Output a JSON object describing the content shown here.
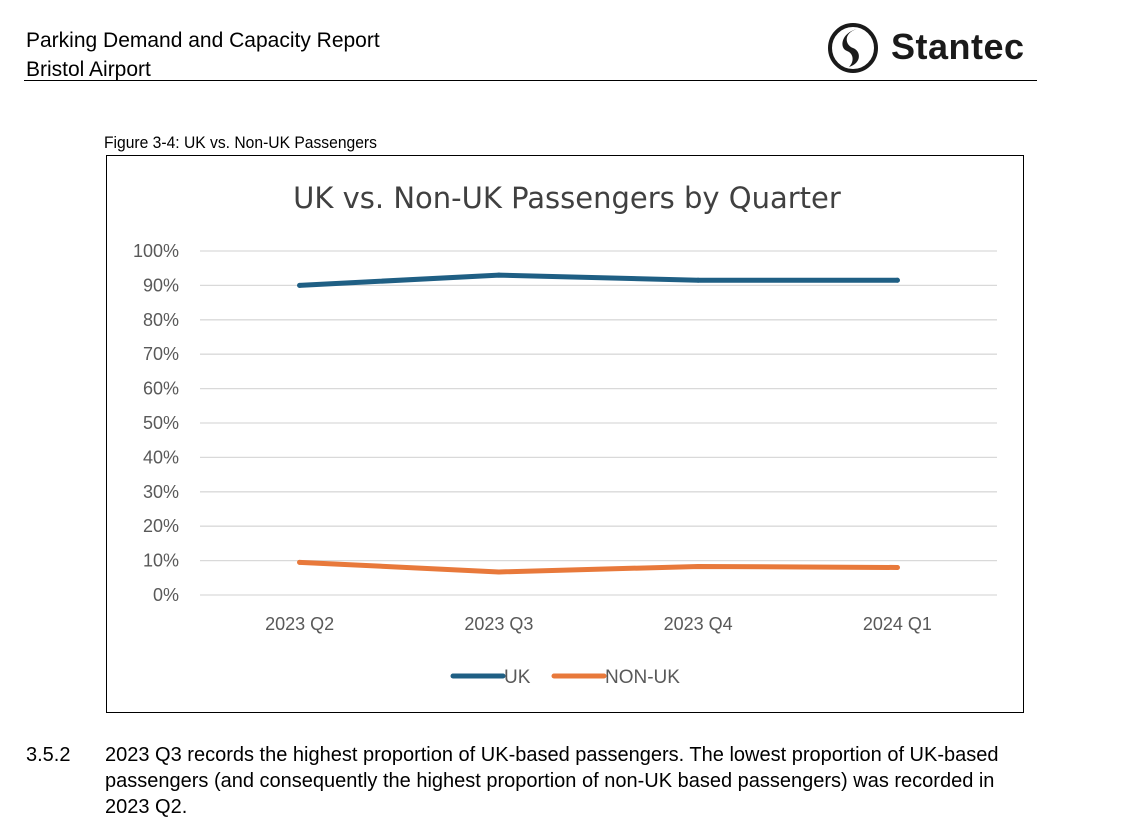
{
  "header": {
    "title": "Parking Demand and Capacity Report",
    "subtitle": "Bristol Airport",
    "logo_text": "Stantec"
  },
  "figure": {
    "caption": "Figure 3-4: UK vs. Non-UK Passengers"
  },
  "chart_data": {
    "type": "line",
    "title": "UK vs. Non-UK Passengers by Quarter",
    "categories": [
      "2023 Q2",
      "2023 Q3",
      "2023 Q4",
      "2024 Q1"
    ],
    "y_ticks": [
      "0%",
      "10%",
      "20%",
      "30%",
      "40%",
      "50%",
      "60%",
      "70%",
      "80%",
      "90%",
      "100%"
    ],
    "ylim": [
      0,
      100
    ],
    "grid": true,
    "legend_position": "bottom",
    "xlabel": "",
    "ylabel": "",
    "series": [
      {
        "name": "UK",
        "values": [
          90,
          93,
          91.5,
          91.5
        ],
        "color": "#1f5f84"
      },
      {
        "name": "NON-UK",
        "values": [
          9.5,
          6.7,
          8.3,
          8.0
        ],
        "color": "#e8793b"
      }
    ]
  },
  "paragraph": {
    "number": "3.5.2",
    "text": "2023 Q3 records the highest proportion of UK-based passengers. The lowest proportion of UK-based passengers (and consequently the highest proportion of non-UK based passengers) was recorded in 2023 Q2."
  }
}
